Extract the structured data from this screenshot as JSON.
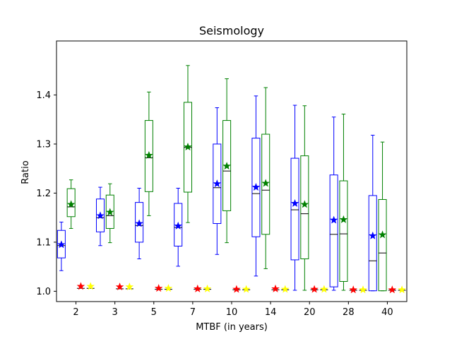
{
  "chart_data": {
    "type": "box",
    "title": "Seismology",
    "xlabel": "MTBF (in years)",
    "ylabel": "Ratio",
    "categories": [
      "2",
      "3",
      "5",
      "7",
      "10",
      "14",
      "20",
      "28",
      "40"
    ],
    "ylim": [
      0.979,
      1.51
    ],
    "yticks": [
      1.0,
      1.1,
      1.2,
      1.3,
      1.4
    ],
    "ytick_labels": [
      "1.0",
      "1.1",
      "1.2",
      "1.3",
      "1.4"
    ],
    "grid": false,
    "legend": "none",
    "series": [
      {
        "color": "#0000ff",
        "boxes": [
          {
            "whislo": 1.042,
            "q1": 1.068,
            "med": 1.093,
            "q3": 1.124,
            "whishi": 1.141,
            "mean": 1.095
          },
          {
            "whislo": 1.093,
            "q1": 1.121,
            "med": 1.15,
            "q3": 1.188,
            "whishi": 1.212,
            "mean": 1.154
          },
          {
            "whislo": 1.066,
            "q1": 1.1,
            "med": 1.134,
            "q3": 1.181,
            "whishi": 1.21,
            "mean": 1.138
          },
          {
            "whislo": 1.051,
            "q1": 1.092,
            "med": 1.13,
            "q3": 1.179,
            "whishi": 1.21,
            "mean": 1.133
          },
          {
            "whislo": 1.075,
            "q1": 1.138,
            "med": 1.211,
            "q3": 1.3,
            "whishi": 1.374,
            "mean": 1.219
          },
          {
            "whislo": 1.031,
            "q1": 1.111,
            "med": 1.199,
            "q3": 1.312,
            "whishi": 1.398,
            "mean": 1.212
          },
          {
            "whislo": 1.002,
            "q1": 1.064,
            "med": 1.166,
            "q3": 1.271,
            "whishi": 1.379,
            "mean": 1.179
          },
          {
            "whislo": 1.002,
            "q1": 1.009,
            "med": 1.116,
            "q3": 1.237,
            "whishi": 1.355,
            "mean": 1.145
          },
          {
            "whislo": 1.001,
            "q1": 1.001,
            "med": 1.062,
            "q3": 1.195,
            "whishi": 1.318,
            "mean": 1.113
          }
        ]
      },
      {
        "color": "#008000",
        "boxes": [
          {
            "whislo": 1.128,
            "q1": 1.152,
            "med": 1.172,
            "q3": 1.209,
            "whishi": 1.227,
            "mean": 1.177
          },
          {
            "whislo": 1.099,
            "q1": 1.128,
            "med": 1.154,
            "q3": 1.196,
            "whishi": 1.219,
            "mean": 1.161
          },
          {
            "whislo": 1.154,
            "q1": 1.203,
            "med": 1.272,
            "q3": 1.348,
            "whishi": 1.406,
            "mean": 1.277
          },
          {
            "whislo": 1.14,
            "q1": 1.202,
            "med": 1.293,
            "q3": 1.385,
            "whishi": 1.46,
            "mean": 1.294
          },
          {
            "whislo": 1.099,
            "q1": 1.164,
            "med": 1.245,
            "q3": 1.348,
            "whishi": 1.433,
            "mean": 1.255
          },
          {
            "whislo": 1.046,
            "q1": 1.116,
            "med": 1.206,
            "q3": 1.32,
            "whishi": 1.415,
            "mean": 1.22
          },
          {
            "whislo": 1.002,
            "q1": 1.066,
            "med": 1.158,
            "q3": 1.276,
            "whishi": 1.378,
            "mean": 1.177
          },
          {
            "whislo": 1.002,
            "q1": 1.02,
            "med": 1.117,
            "q3": 1.225,
            "whishi": 1.361,
            "mean": 1.146
          },
          {
            "whislo": 1.001,
            "q1": 1.001,
            "med": 1.078,
            "q3": 1.187,
            "whishi": 1.304,
            "mean": 1.115
          }
        ]
      },
      {
        "color": "#ff0000",
        "flat_boxes": [
          1.006,
          1.005,
          1.004,
          1.004,
          1.003,
          1.003,
          1.003,
          1.002,
          1.002
        ],
        "means": [
          1.01,
          1.009,
          1.006,
          1.005,
          1.004,
          1.005,
          1.004,
          1.003,
          1.003
        ]
      },
      {
        "color": "#ffff00",
        "flat_boxes": [
          1.006,
          1.005,
          1.004,
          1.004,
          1.003,
          1.003,
          1.003,
          1.002,
          1.002
        ],
        "means": [
          1.01,
          1.009,
          1.006,
          1.005,
          1.004,
          1.004,
          1.004,
          1.003,
          1.003
        ]
      }
    ]
  }
}
